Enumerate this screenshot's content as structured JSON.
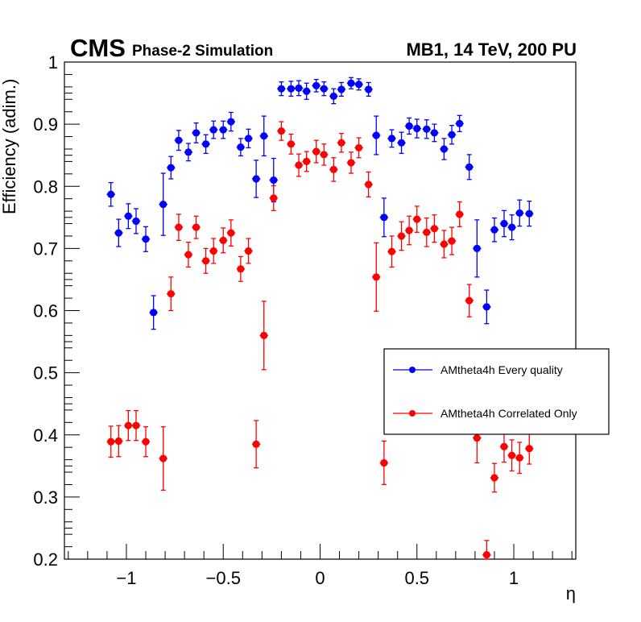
{
  "header": {
    "experiment": "CMS",
    "subtitle": "Phase-2 Simulation",
    "right_title": "MB1, 14 TeV, 200 PU"
  },
  "chart_data": {
    "type": "scatter",
    "title": "",
    "xlabel": "η",
    "ylabel": "Efficiency (adim.)",
    "xlim": [
      -1.32,
      1.32
    ],
    "ylim": [
      0.2,
      1.0
    ],
    "xticks": [
      -1,
      -0.5,
      0,
      0.5,
      1
    ],
    "xtick_labels": [
      "−1",
      "−0.5",
      "0",
      "0.5",
      "1"
    ],
    "yticks": [
      0.2,
      0.3,
      0.4,
      0.5,
      0.6,
      0.7,
      0.8,
      0.9,
      1.0
    ],
    "ytick_labels": [
      "0.2",
      "0.3",
      "0.4",
      "0.5",
      "0.6",
      "0.7",
      "0.8",
      "0.9",
      "1"
    ],
    "grid": false,
    "legend_position": "right-middle",
    "series": [
      {
        "name": "AMtheta4h Every quality",
        "color": "#0000ff",
        "x": [
          -1.08,
          -1.04,
          -0.99,
          -0.95,
          -0.9,
          -0.86,
          -0.81,
          -0.77,
          -0.73,
          -0.68,
          -0.64,
          -0.59,
          -0.55,
          -0.5,
          -0.46,
          -0.41,
          -0.37,
          -0.33,
          -0.29,
          -0.24,
          -0.2,
          -0.15,
          -0.11,
          -0.07,
          -0.02,
          0.02,
          0.07,
          0.11,
          0.16,
          0.2,
          0.25,
          0.29,
          0.33,
          0.37,
          0.42,
          0.46,
          0.5,
          0.55,
          0.59,
          0.64,
          0.68,
          0.72,
          0.77,
          0.81,
          0.86,
          0.9,
          0.95,
          0.99,
          1.03,
          1.08
        ],
        "y": [
          0.787,
          0.725,
          0.752,
          0.744,
          0.715,
          0.597,
          0.771,
          0.83,
          0.874,
          0.855,
          0.886,
          0.868,
          0.891,
          0.891,
          0.904,
          0.863,
          0.877,
          0.812,
          0.881,
          0.81,
          0.957,
          0.957,
          0.958,
          0.953,
          0.962,
          0.957,
          0.945,
          0.956,
          0.966,
          0.964,
          0.956,
          0.882,
          0.75,
          0.877,
          0.87,
          0.897,
          0.893,
          0.892,
          0.886,
          0.86,
          0.883,
          0.901,
          0.831,
          0.7,
          0.606,
          0.73,
          0.74,
          0.734,
          0.757,
          0.756
        ],
        "err": [
          0.019,
          0.022,
          0.02,
          0.02,
          0.02,
          0.027,
          0.05,
          0.018,
          0.016,
          0.014,
          0.016,
          0.015,
          0.014,
          0.014,
          0.015,
          0.014,
          0.015,
          0.03,
          0.032,
          0.035,
          0.011,
          0.012,
          0.012,
          0.013,
          0.01,
          0.011,
          0.012,
          0.011,
          0.009,
          0.009,
          0.011,
          0.031,
          0.031,
          0.014,
          0.017,
          0.013,
          0.015,
          0.015,
          0.014,
          0.017,
          0.015,
          0.013,
          0.02,
          0.046,
          0.027,
          0.019,
          0.021,
          0.02,
          0.021,
          0.02
        ]
      },
      {
        "name": "AMtheta4h Correlated Only",
        "color": "#ff0000",
        "x": [
          -1.08,
          -1.04,
          -0.99,
          -0.95,
          -0.9,
          -0.81,
          -0.77,
          -0.73,
          -0.68,
          -0.64,
          -0.59,
          -0.55,
          -0.5,
          -0.46,
          -0.41,
          -0.37,
          -0.33,
          -0.29,
          -0.24,
          -0.2,
          -0.15,
          -0.11,
          -0.07,
          -0.02,
          0.02,
          0.07,
          0.11,
          0.16,
          0.2,
          0.25,
          0.29,
          0.33,
          0.37,
          0.42,
          0.46,
          0.5,
          0.55,
          0.59,
          0.64,
          0.68,
          0.72,
          0.77,
          0.81,
          0.86,
          0.9,
          0.95,
          0.99,
          1.03,
          1.08
        ],
        "y": [
          0.389,
          0.39,
          0.415,
          0.415,
          0.389,
          0.362,
          0.627,
          0.734,
          0.69,
          0.734,
          0.68,
          0.696,
          0.713,
          0.725,
          0.667,
          0.696,
          0.385,
          0.56,
          0.781,
          0.889,
          0.868,
          0.834,
          0.84,
          0.856,
          0.851,
          0.827,
          0.87,
          0.838,
          0.862,
          0.803,
          0.654,
          0.355,
          0.695,
          0.72,
          0.729,
          0.747,
          0.726,
          0.732,
          0.707,
          0.712,
          0.755,
          0.616,
          0.395,
          0.207,
          0.331,
          0.381,
          0.367,
          0.363,
          0.378
        ],
        "err": [
          0.025,
          0.025,
          0.024,
          0.024,
          0.024,
          0.051,
          0.027,
          0.021,
          0.02,
          0.018,
          0.02,
          0.02,
          0.02,
          0.021,
          0.02,
          0.02,
          0.038,
          0.055,
          0.02,
          0.015,
          0.016,
          0.018,
          0.016,
          0.018,
          0.017,
          0.019,
          0.015,
          0.017,
          0.016,
          0.02,
          0.055,
          0.035,
          0.025,
          0.023,
          0.023,
          0.021,
          0.023,
          0.022,
          0.022,
          0.022,
          0.02,
          0.026,
          0.04,
          0.023,
          0.023,
          0.025,
          0.025,
          0.025,
          0.025
        ]
      }
    ]
  }
}
